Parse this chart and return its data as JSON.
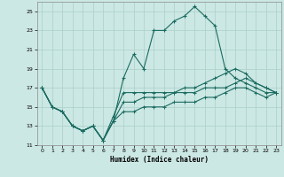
{
  "xlabel": "Humidex (Indice chaleur)",
  "background_color": "#cce8e4",
  "grid_color": "#aacfca",
  "line_color": "#1a6b60",
  "xlim": [
    -0.5,
    23.5
  ],
  "ylim": [
    11,
    26
  ],
  "xticks": [
    0,
    1,
    2,
    3,
    4,
    5,
    6,
    7,
    8,
    9,
    10,
    11,
    12,
    13,
    14,
    15,
    16,
    17,
    18,
    19,
    20,
    21,
    22,
    23
  ],
  "yticks": [
    11,
    13,
    15,
    17,
    19,
    21,
    23,
    25
  ],
  "line1_x": [
    0,
    1,
    2,
    3,
    4,
    5,
    6,
    7,
    8,
    9,
    10,
    11,
    12,
    13,
    14,
    15,
    16,
    17,
    18,
    19,
    20,
    21,
    22,
    23
  ],
  "line1_y": [
    17,
    15,
    14.5,
    13,
    12.5,
    13,
    11.5,
    13.5,
    18,
    20.5,
    19,
    23,
    23,
    24,
    24.5,
    25.5,
    24.5,
    23.5,
    19,
    18,
    17.5,
    17,
    16.5,
    16.5
  ],
  "line2_x": [
    0,
    1,
    2,
    3,
    4,
    5,
    6,
    7,
    8,
    9,
    10,
    11,
    12,
    13,
    14,
    15,
    16,
    17,
    18,
    19,
    20,
    21,
    22,
    23
  ],
  "line2_y": [
    17,
    15,
    14.5,
    13,
    12.5,
    13,
    11.5,
    14,
    16.5,
    16.5,
    16.5,
    16.5,
    16.5,
    16.5,
    17,
    17,
    17.5,
    18,
    18.5,
    19,
    18.5,
    17.5,
    17,
    16.5
  ],
  "line3_x": [
    0,
    1,
    2,
    3,
    4,
    5,
    6,
    7,
    8,
    9,
    10,
    11,
    12,
    13,
    14,
    15,
    16,
    17,
    18,
    19,
    20,
    21,
    22,
    23
  ],
  "line3_y": [
    17,
    15,
    14.5,
    13,
    12.5,
    13,
    11.5,
    13.5,
    15.5,
    15.5,
    16,
    16,
    16,
    16.5,
    16.5,
    16.5,
    17,
    17,
    17,
    17.5,
    18,
    17.5,
    17,
    16.5
  ],
  "line4_x": [
    0,
    1,
    2,
    3,
    4,
    5,
    6,
    7,
    8,
    9,
    10,
    11,
    12,
    13,
    14,
    15,
    16,
    17,
    18,
    19,
    20,
    21,
    22,
    23
  ],
  "line4_y": [
    17,
    15,
    14.5,
    13,
    12.5,
    13,
    11.5,
    13.5,
    14.5,
    14.5,
    15,
    15,
    15,
    15.5,
    15.5,
    15.5,
    16,
    16,
    16.5,
    17,
    17,
    16.5,
    16,
    16.5
  ]
}
